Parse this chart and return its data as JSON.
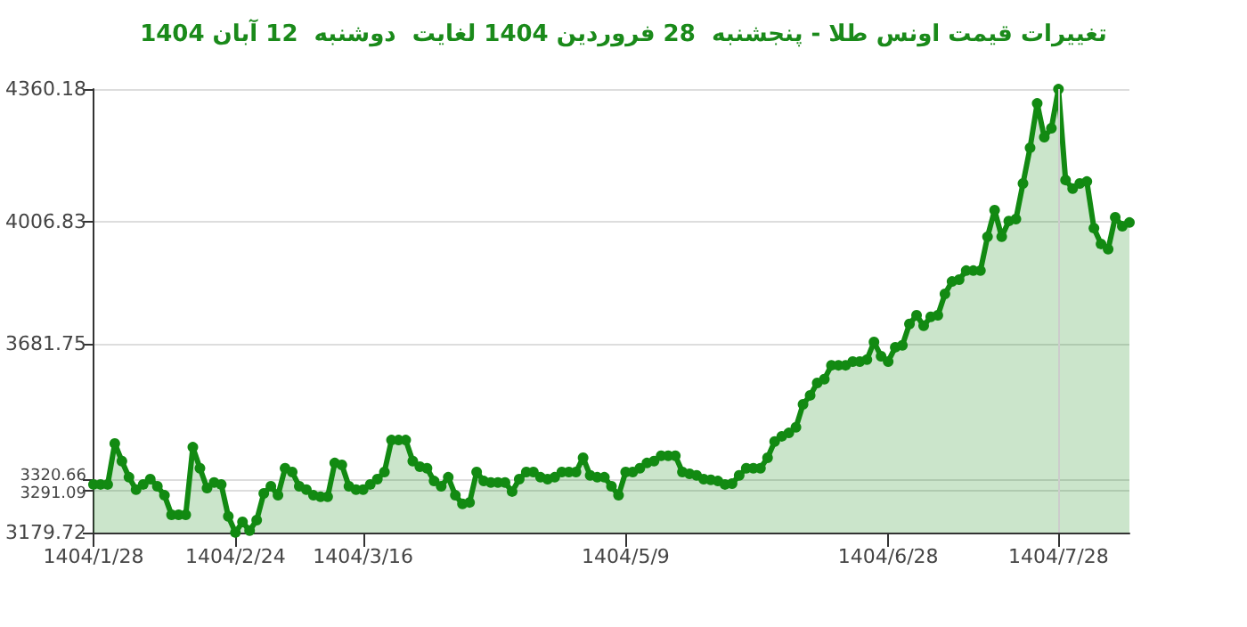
{
  "chart_data": {
    "type": "area",
    "title": "تغییرات قیمت اونس طلا - پنجشنبه  28 فروردین 1404 لغایت  دوشنبه  12 آبان 1404",
    "categories": [
      "1404/1/28",
      null,
      null,
      null,
      null,
      null,
      null,
      null,
      null,
      null,
      null,
      null,
      null,
      null,
      null,
      null,
      null,
      null,
      null,
      null,
      "1404/2/24",
      null,
      null,
      null,
      null,
      null,
      null,
      null,
      null,
      null,
      null,
      null,
      null,
      null,
      null,
      null,
      null,
      null,
      "1404/3/16",
      null,
      null,
      null,
      null,
      null,
      null,
      null,
      null,
      null,
      null,
      null,
      null,
      null,
      null,
      null,
      null,
      null,
      null,
      null,
      null,
      null,
      null,
      null,
      null,
      null,
      null,
      null,
      null,
      null,
      null,
      null,
      null,
      null,
      null,
      null,
      null,
      "1404/5/9",
      null,
      null,
      null,
      null,
      null,
      null,
      null,
      null,
      null,
      null,
      null,
      null,
      null,
      null,
      null,
      null,
      null,
      null,
      null,
      null,
      null,
      null,
      null,
      null,
      null,
      null,
      null,
      null,
      null,
      null,
      null,
      null,
      null,
      null,
      null,
      null,
      "1404/6/28",
      null,
      null,
      null,
      null,
      null,
      null,
      null,
      null,
      null,
      null,
      null,
      null,
      null,
      null,
      null,
      null,
      null,
      null,
      null,
      null,
      null,
      null,
      null,
      "1404/7/28",
      null,
      null,
      null,
      null,
      null,
      null,
      null,
      null,
      null,
      null
    ],
    "series": [
      {
        "color": "#128a12",
        "values": [
          3308,
          3308,
          3308,
          3417,
          3370,
          3327,
          3294,
          3308,
          3322,
          3303,
          3279,
          3227,
          3227,
          3227,
          3407,
          3351,
          3298,
          3313,
          3308,
          3223,
          3180,
          3208,
          3185,
          3213,
          3284,
          3303,
          3279,
          3351,
          3341,
          3303,
          3294,
          3279,
          3275,
          3275,
          3365,
          3360,
          3303,
          3294,
          3294,
          3308,
          3322,
          3341,
          3426,
          3426,
          3426,
          3370,
          3355,
          3351,
          3317,
          3303,
          3327,
          3279,
          3256,
          3260,
          3341,
          3317,
          3313,
          3313,
          3313,
          3289,
          3322,
          3341,
          3341,
          3327,
          3322,
          3327,
          3341,
          3341,
          3341,
          3379,
          3332,
          3327,
          3327,
          3303,
          3279,
          3341,
          3341,
          3351,
          3365,
          3370,
          3384,
          3384,
          3384,
          3341,
          3336,
          3332,
          3322,
          3320,
          3317,
          3308,
          3310,
          3332,
          3351,
          3351,
          3351,
          3379,
          3422,
          3436,
          3445,
          3460,
          3521,
          3545,
          3578,
          3588,
          3625,
          3625,
          3625,
          3635,
          3635,
          3640,
          3687,
          3649,
          3635,
          3673,
          3678,
          3735,
          3758,
          3730,
          3754,
          3758,
          3815,
          3848,
          3853,
          3877,
          3877,
          3877,
          3967,
          4038,
          3967,
          4009,
          4014,
          4109,
          4204,
          4322,
          4232,
          4256,
          4360,
          4118,
          4095,
          4109,
          4114,
          3990,
          3948,
          3934,
          4019,
          3995,
          4005
        ]
      }
    ],
    "ylim": [
      3179.72,
      4360.18
    ],
    "yticks": [
      3179.72,
      3291.09,
      3320.66,
      3681.75,
      4006.83,
      4360.18
    ],
    "ref_lines": [
      {
        "axis": "x",
        "value": "1404/7/28",
        "color": "#cccccc"
      }
    ],
    "grid": "y",
    "marker": "circle",
    "line_style": "solid"
  }
}
